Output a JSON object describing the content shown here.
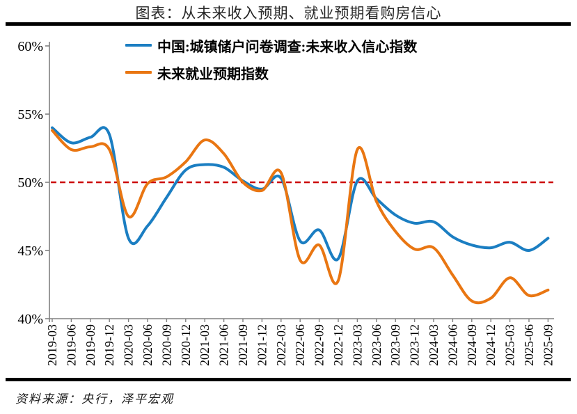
{
  "title": "图表：从未来收入预期、就业预期看购房信心",
  "source": "资料来源：央行，泽平宏观",
  "chart_data": {
    "type": "line",
    "title": "图表：从未来收入预期、就业预期看购房信心",
    "grid": false,
    "legend_position": "top-left-inside",
    "xlabel": "",
    "ylabel": "",
    "ylim": [
      40,
      60
    ],
    "y_ticks": [
      {
        "label": "60%",
        "value": 60
      },
      {
        "label": "55%",
        "value": 55
      },
      {
        "label": "50%",
        "value": 50
      },
      {
        "label": "45%",
        "value": 45
      },
      {
        "label": "40%",
        "value": 40
      }
    ],
    "reference_line": {
      "value": 50,
      "style": "dashed",
      "color": "#CC0000"
    },
    "categories": [
      "2019-03",
      "2019-06",
      "2019-09",
      "2019-12",
      "2020-03",
      "2020-06",
      "2020-09",
      "2020-12",
      "2021-03",
      "2021-06",
      "2021-09",
      "2021-12",
      "2022-03",
      "2022-06",
      "2022-09",
      "2022-12",
      "2023-03",
      "2023-06",
      "2023-09",
      "2023-12",
      "2024-03",
      "2024-06",
      "2024-09",
      "2024-12",
      "2025-03",
      "2025-06",
      "2025-09"
    ],
    "series": [
      {
        "name": "中国:城镇储户问卷调查:未来收入信心指数",
        "color": "#1B7EC2",
        "values": [
          54.0,
          52.9,
          53.3,
          53.5,
          45.9,
          46.8,
          48.9,
          50.9,
          51.3,
          51.1,
          50.1,
          49.5,
          50.3,
          45.7,
          46.5,
          44.4,
          50.1,
          48.8,
          47.6,
          47.0,
          47.1,
          46.0,
          45.4,
          45.2,
          45.6,
          45.0,
          45.9
        ]
      },
      {
        "name": "未来就业预期指数",
        "color": "#E97612",
        "values": [
          53.8,
          52.4,
          52.6,
          52.4,
          47.5,
          49.9,
          50.4,
          51.5,
          53.1,
          52.1,
          50.0,
          49.4,
          50.7,
          44.3,
          45.4,
          42.8,
          52.4,
          48.6,
          46.4,
          45.1,
          45.2,
          43.2,
          41.3,
          41.5,
          43.0,
          41.7,
          42.1
        ]
      }
    ]
  }
}
